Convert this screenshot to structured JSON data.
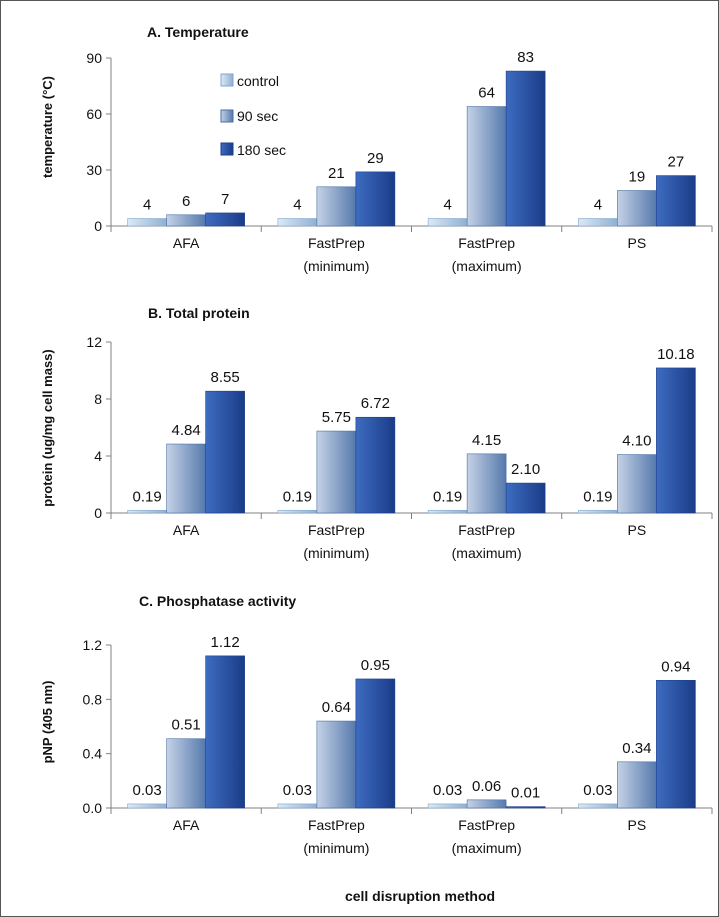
{
  "series_colors": {
    "control": [
      "#c9dff2",
      "#7fa6cc"
    ],
    "90 sec": [
      "#aebfd9",
      "#4a6fa5"
    ],
    "180 sec": [
      "#3a66b5",
      "#1c3f8c"
    ]
  },
  "legend": [
    "control",
    "90 sec",
    "180 sec"
  ],
  "xlabel": "cell disruption method",
  "chart_data": [
    {
      "type": "bar",
      "title": "A.  Temperature",
      "ylabel": "temperature (°C)",
      "ylim": [
        0,
        90
      ],
      "yticks": [
        "0",
        "30",
        "60",
        "90"
      ],
      "categories": [
        [
          "AFA"
        ],
        [
          "FastPrep",
          "(minimum)"
        ],
        [
          "FastPrep",
          "(maximum)"
        ],
        [
          "PS"
        ]
      ],
      "series": [
        {
          "name": "control",
          "values": [
            4,
            4,
            4,
            4
          ],
          "labels": [
            "4",
            "4",
            "4",
            "4"
          ]
        },
        {
          "name": "90 sec",
          "values": [
            6,
            21,
            64,
            19
          ],
          "labels": [
            "6",
            "21",
            "64",
            "19"
          ]
        },
        {
          "name": "180 sec",
          "values": [
            7,
            29,
            83,
            27
          ],
          "labels": [
            "7",
            "29",
            "83",
            "27"
          ]
        }
      ]
    },
    {
      "type": "bar",
      "title": "B.  Total protein",
      "ylabel": "protein (ug/mg cell mass)",
      "ylim": [
        0,
        12
      ],
      "yticks": [
        "0",
        "4",
        "8",
        "12"
      ],
      "categories": [
        [
          "AFA"
        ],
        [
          "FastPrep",
          "(minimum)"
        ],
        [
          "FastPrep",
          "(maximum)"
        ],
        [
          "PS"
        ]
      ],
      "series": [
        {
          "name": "control",
          "values": [
            0.19,
            0.19,
            0.19,
            0.19
          ],
          "labels": [
            "0.19",
            "0.19",
            "0.19",
            "0.19"
          ]
        },
        {
          "name": "90 sec",
          "values": [
            4.84,
            5.75,
            4.15,
            4.1
          ],
          "labels": [
            "4.84",
            "5.75",
            "4.15",
            "4.10"
          ]
        },
        {
          "name": "180 sec",
          "values": [
            8.55,
            6.72,
            2.1,
            10.18
          ],
          "labels": [
            "8.55",
            "6.72",
            "2.10",
            "10.18"
          ]
        }
      ]
    },
    {
      "type": "bar",
      "title": "C.  Phosphatase activity",
      "ylabel": "pNP (405 nm)",
      "ylim": [
        0,
        1.2
      ],
      "yticks": [
        "0.0",
        "0.4",
        "0.8",
        "1.2"
      ],
      "categories": [
        [
          "AFA"
        ],
        [
          "FastPrep",
          "(minimum)"
        ],
        [
          "FastPrep",
          "(maximum)"
        ],
        [
          "PS"
        ]
      ],
      "series": [
        {
          "name": "control",
          "values": [
            0.03,
            0.03,
            0.03,
            0.03
          ],
          "labels": [
            "0.03",
            "0.03",
            "0.03",
            "0.03"
          ]
        },
        {
          "name": "90 sec",
          "values": [
            0.51,
            0.64,
            0.06,
            0.34
          ],
          "labels": [
            "0.51",
            "0.64",
            "0.06",
            "0.34"
          ]
        },
        {
          "name": "180 sec",
          "values": [
            1.12,
            0.95,
            0.01,
            0.94
          ],
          "labels": [
            "1.12",
            "0.95",
            "0.01",
            "0.94"
          ]
        }
      ]
    }
  ]
}
